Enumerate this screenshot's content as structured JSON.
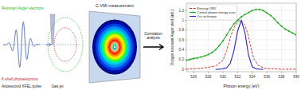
{
  "chart_data": {
    "type": "line",
    "xlabel": "Photon energy (eV)",
    "ylabel": "Oxygen resonant Auger yield (arb.)",
    "xlim": [
      525,
      540
    ],
    "ylim": [
      -0.05,
      1.35
    ],
    "xticks": [
      526,
      528,
      530,
      532,
      534,
      536,
      538,
      540
    ],
    "yticks": [
      0,
      0.2,
      0.4,
      0.6,
      0.8,
      1.0,
      1.2
    ],
    "grid": true,
    "legend": "upper left",
    "series": [
      {
        "name": "Knosogi 1992",
        "color": "#cc2222",
        "line_style": "dashed",
        "x": [
          525,
          526,
          527,
          528,
          529,
          530,
          530.5,
          531,
          531.5,
          532,
          532.3,
          532.6,
          533.0,
          533.4,
          533.8,
          534.2,
          534.8,
          535.5,
          536,
          537,
          538,
          539,
          540
        ],
        "values": [
          0.0,
          0.01,
          0.02,
          0.04,
          0.07,
          0.18,
          0.38,
          0.65,
          0.85,
          0.97,
          1.0,
          0.98,
          0.9,
          0.72,
          0.45,
          0.22,
          0.08,
          0.03,
          0.01,
          0.01,
          0.0,
          0.0,
          0.0
        ]
      },
      {
        "name": "Central photon energy scan",
        "color": "#22aa22",
        "line_style": "solid",
        "marker": "square",
        "x": [
          525,
          525.5,
          526,
          526.5,
          527,
          527.5,
          528,
          528.5,
          529,
          529.5,
          530,
          530.5,
          531,
          531.5,
          532,
          532.5,
          533,
          533.5,
          534,
          534.5,
          535,
          535.5,
          536,
          536.5,
          537,
          537.5,
          538,
          538.5,
          539,
          539.5,
          540
        ],
        "values": [
          0.18,
          0.2,
          0.22,
          0.23,
          0.25,
          0.27,
          0.3,
          0.34,
          0.4,
          0.48,
          0.58,
          0.7,
          0.82,
          0.93,
          1.0,
          1.07,
          1.12,
          1.16,
          1.2,
          1.22,
          1.22,
          1.2,
          1.15,
          1.1,
          1.03,
          0.95,
          0.88,
          0.82,
          0.78,
          0.74,
          0.7
        ]
      },
      {
        "name": "Our technique",
        "color": "#2222cc",
        "line_style": "solid",
        "x": [
          529.0,
          529.5,
          530.0,
          530.5,
          531.0,
          531.5,
          532.0,
          532.5,
          533.0,
          533.5,
          534.0,
          534.5,
          535.0,
          535.5
        ],
        "values": [
          0.0,
          0.0,
          0.01,
          0.03,
          0.12,
          0.38,
          0.78,
          1.0,
          0.75,
          0.28,
          0.05,
          0.01,
          0.0,
          0.0
        ]
      }
    ],
    "annotations": [
      {
        "text": "Attosecond XFEL pulse"
      },
      {
        "text": "Gas jet"
      },
      {
        "text": "Resonant Auger electrons",
        "color": "#22bb22"
      },
      {
        "text": "K-shell photoelectrons",
        "color": "#cc2222"
      },
      {
        "text": "C-VMI measurement"
      },
      {
        "text": "Correlation\nanalysis"
      }
    ]
  }
}
